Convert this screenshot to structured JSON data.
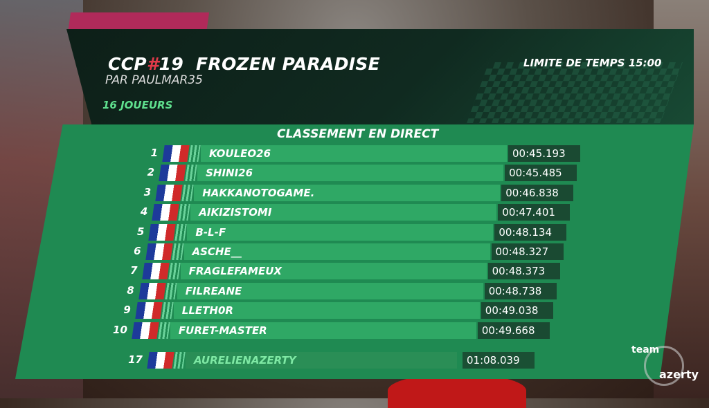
{
  "header": {
    "tag_prefix": "CCP",
    "tag_hash": "#",
    "tag_number": "19",
    "map_name": "FROZEN PARADISE",
    "author": "PAR PAULMAR35",
    "players": "16 JOUEURS",
    "time_limit": "LIMITE DE TEMPS 15:00"
  },
  "standings": {
    "title": "CLASSEMENT EN DIRECT",
    "rows": [
      {
        "rank": "1",
        "name": "KOULEO26",
        "time": "00:45.193"
      },
      {
        "rank": "2",
        "name": "SHINI26",
        "time": "00:45.485"
      },
      {
        "rank": "3",
        "name": "HAKKANOTOGAME.",
        "time": "00:46.838"
      },
      {
        "rank": "4",
        "name": "AIKIZISTOMI",
        "time": "00:47.401"
      },
      {
        "rank": "5",
        "name": "B-L-F",
        "time": "00:48.134"
      },
      {
        "rank": "6",
        "name": "ASCHE__",
        "time": "00:48.327"
      },
      {
        "rank": "7",
        "name": "FRAGLEFAMEUX",
        "time": "00:48.373"
      },
      {
        "rank": "8",
        "name": "FILREANE",
        "time": "00:48.738"
      },
      {
        "rank": "9",
        "name": "LLETH0R",
        "time": "00:49.038"
      },
      {
        "rank": "10",
        "name": "FURET-MASTER",
        "time": "00:49.668"
      }
    ],
    "self_row": {
      "rank": "17",
      "name": "AURELIENAZERTY",
      "time": "01:08.039"
    }
  },
  "watermark": {
    "line1": "team",
    "line2": "azerty"
  },
  "colors": {
    "accent_green": "#5fe08e",
    "hash_red": "#e03a4a",
    "panel_green": "#1f8a52"
  }
}
